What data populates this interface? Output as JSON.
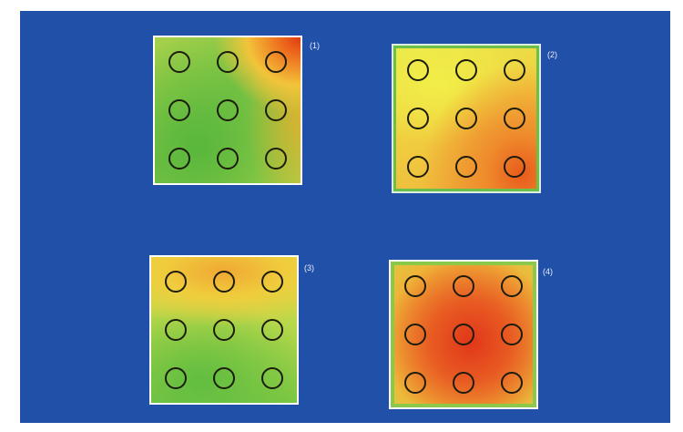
{
  "figure": {
    "background_color": "#2150a8",
    "panels": [
      {
        "id": "panel-1",
        "label": "(1)",
        "wells": 9
      },
      {
        "id": "panel-2",
        "label": "(2)",
        "wells": 9
      },
      {
        "id": "panel-3",
        "label": "(3)",
        "wells": 9
      },
      {
        "id": "panel-4",
        "label": "(4)",
        "wells": 9
      }
    ]
  }
}
